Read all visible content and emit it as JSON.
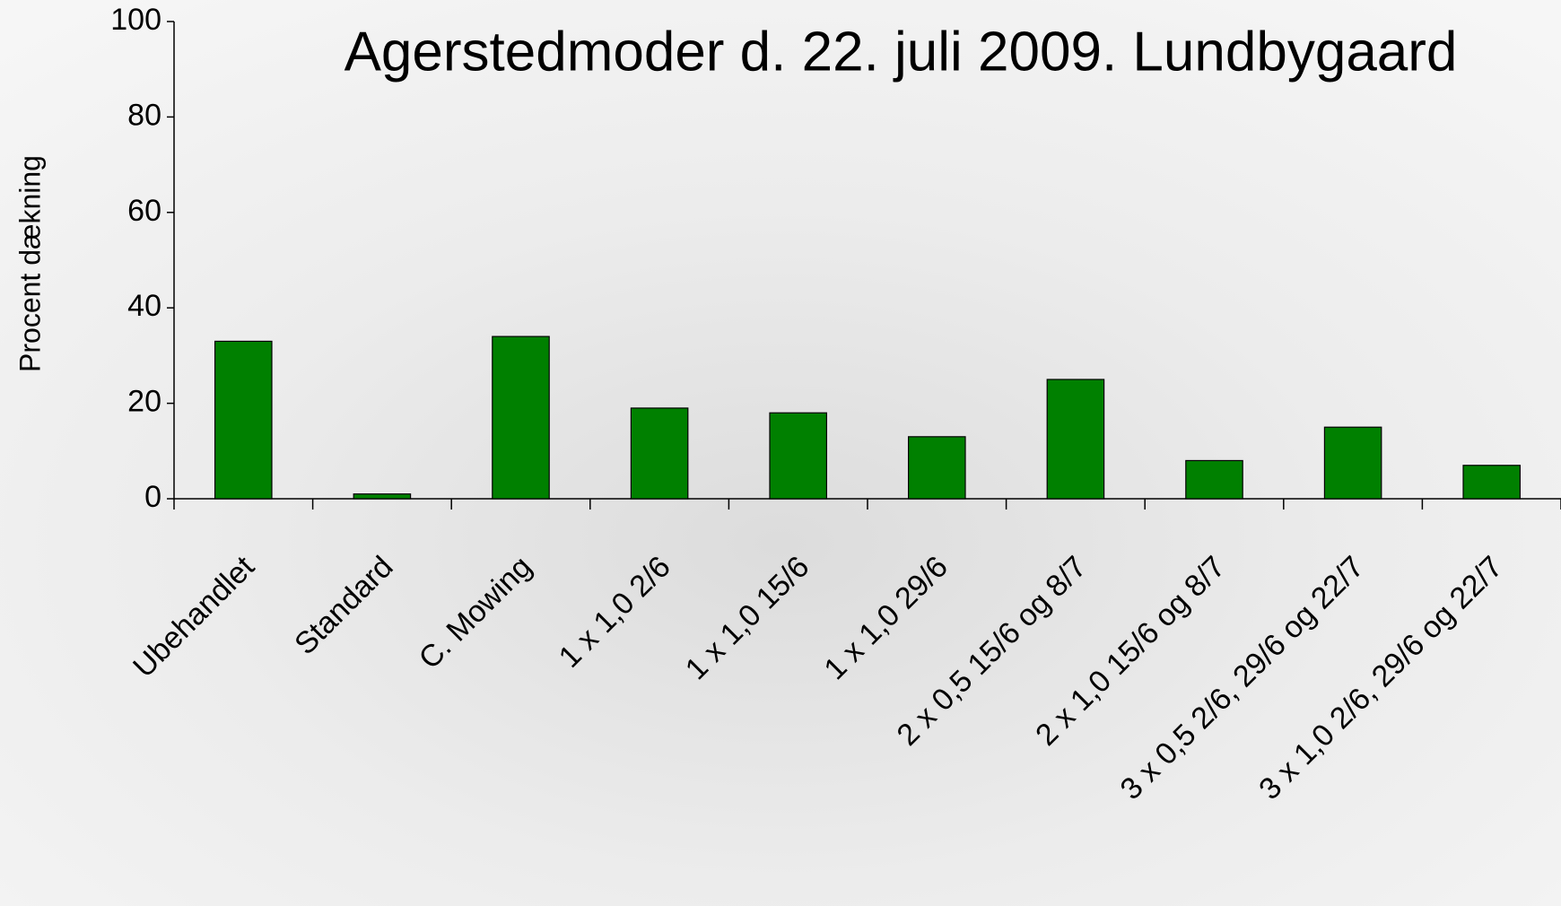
{
  "chart_data": {
    "type": "bar",
    "title": "Agerstedmoder d. 22. juli 2009. Lundbygaard",
    "y_label": "Procent dækning",
    "categories": [
      "Ubehandlet",
      "Standard",
      "C. Mowing",
      "1 x 1,0 2/6",
      "1 x 1,0 15/6",
      "1 x 1,0 29/6",
      "2 x 0,5 15/6 og 8/7",
      "2 x 1,0 15/6 og 8/7",
      "3 x 0,5 2/6, 29/6 og 22/7",
      "3 x 1,0 2/6, 29/6 og 22/7"
    ],
    "values": [
      33,
      1,
      34,
      19,
      18,
      13,
      25,
      8,
      15,
      7
    ],
    "color": "#008000",
    "ylim": [
      0,
      100
    ],
    "yticks": [
      0,
      20,
      40,
      60,
      80,
      100
    ],
    "grid": false
  }
}
